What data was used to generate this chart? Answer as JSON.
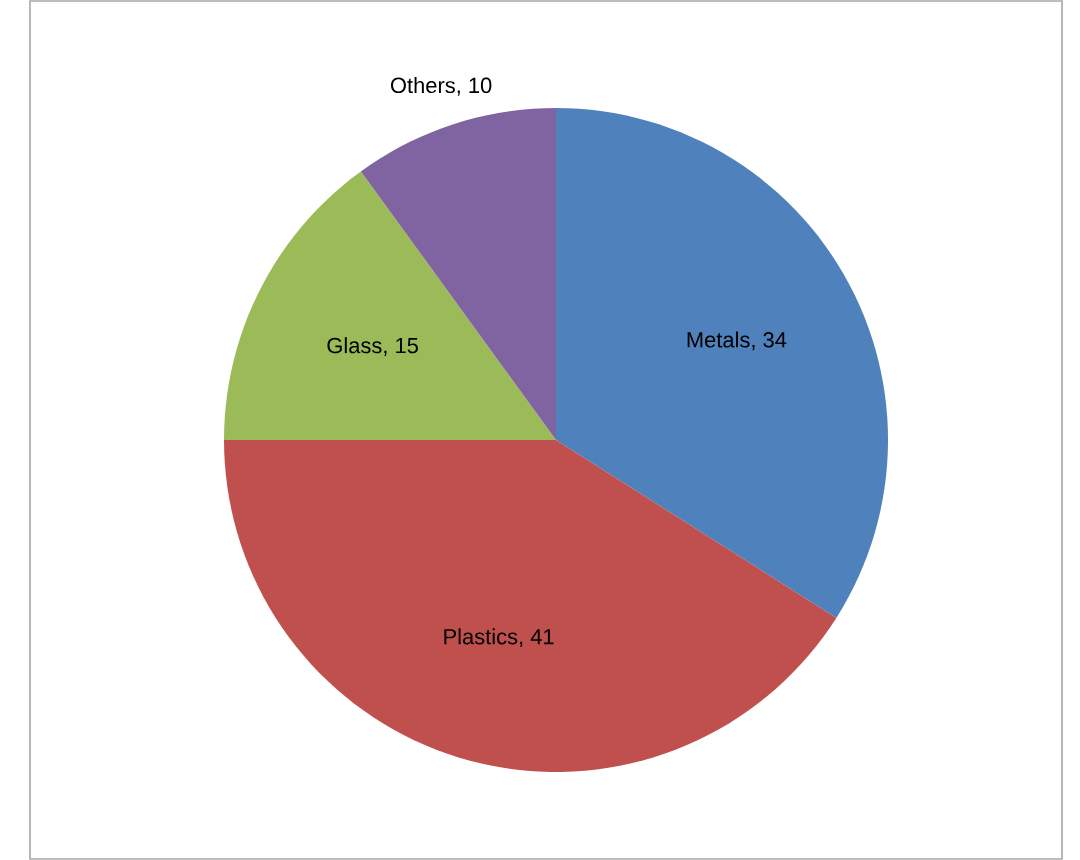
{
  "chart_data": {
    "type": "pie",
    "categories": [
      "Metals",
      "Plastics",
      "Glass",
      "Others"
    ],
    "values": [
      34,
      41,
      15,
      10
    ],
    "value_labels": [
      ", 34",
      ", 41",
      ", 15",
      ", 10"
    ],
    "colors": [
      "#4f81bd",
      "#c0504d",
      "#9bbb59",
      "#8064a2"
    ]
  }
}
